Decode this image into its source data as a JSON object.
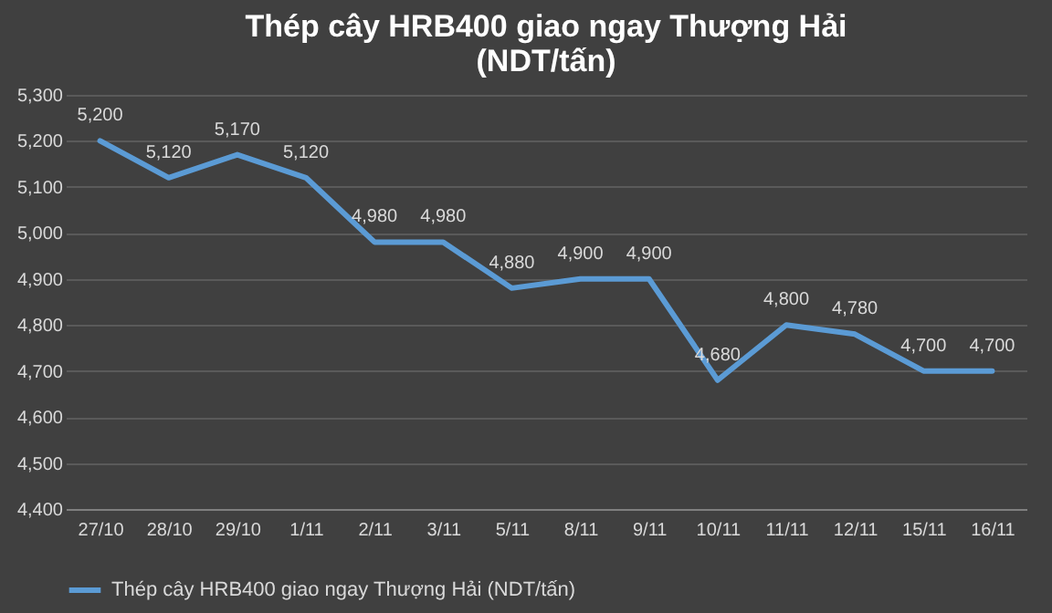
{
  "chart_data": {
    "type": "line",
    "title": "Thép cây HRB400 giao ngay Thượng Hải (NDT/tấn)",
    "categories": [
      "27/10",
      "28/10",
      "29/10",
      "1/11",
      "2/11",
      "3/11",
      "5/11",
      "8/11",
      "9/11",
      "10/11",
      "11/11",
      "12/11",
      "15/11",
      "16/11"
    ],
    "series": [
      {
        "name": "Thép cây HRB400 giao ngay Thượng Hải (NDT/tấn)",
        "color": "#5b9bd5",
        "values": [
          5200,
          5120,
          5170,
          5120,
          4980,
          4980,
          4880,
          4900,
          4900,
          4680,
          4800,
          4780,
          4700,
          4700
        ],
        "value_labels": [
          "5,200",
          "5,120",
          "5,170",
          "5,120",
          "4,980",
          "4,980",
          "4,880",
          "4,900",
          "4,900",
          "4,680",
          "4,800",
          "4,780",
          "4,700",
          "4,700"
        ]
      }
    ],
    "ylim": [
      4400,
      5300
    ],
    "yticks": [
      {
        "value": 4400,
        "label": "4,400"
      },
      {
        "value": 4500,
        "label": "4,500"
      },
      {
        "value": 4600,
        "label": "4,600"
      },
      {
        "value": 4700,
        "label": "4,700"
      },
      {
        "value": 4800,
        "label": "4,800"
      },
      {
        "value": 4900,
        "label": "4,900"
      },
      {
        "value": 5000,
        "label": "5,000"
      },
      {
        "value": 5100,
        "label": "5,100"
      },
      {
        "value": 5200,
        "label": "5,200"
      },
      {
        "value": 5300,
        "label": "5,300"
      }
    ],
    "grid": "y",
    "legend": "bottom",
    "marker": "none",
    "line_style": "solid"
  }
}
